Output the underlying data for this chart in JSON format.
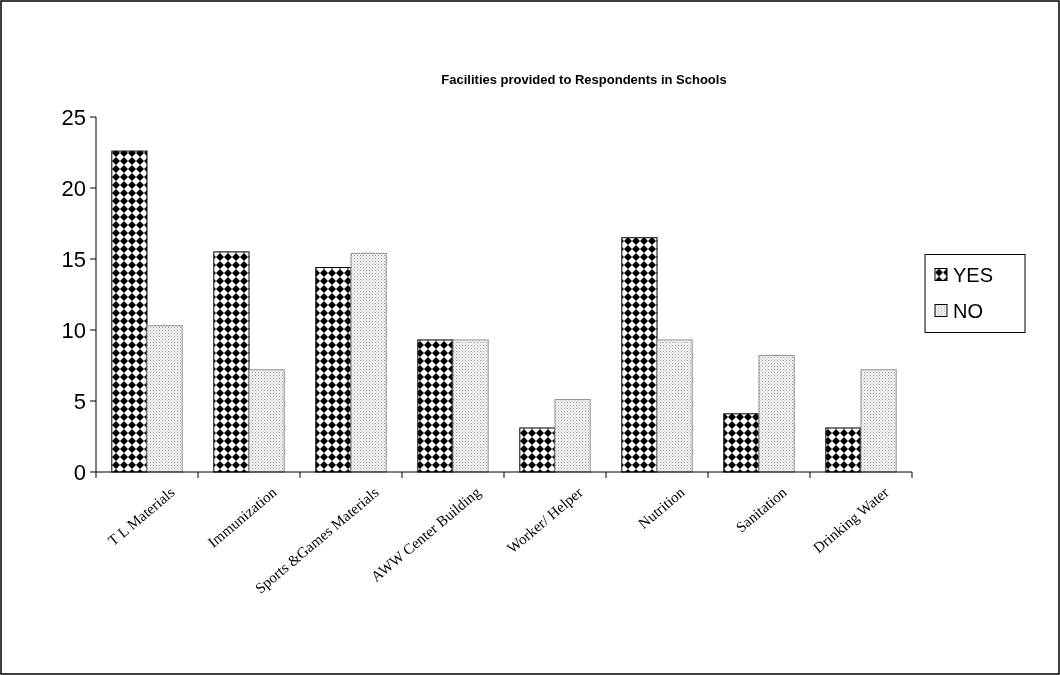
{
  "chart_data": {
    "type": "bar",
    "title": "Facilities provided to Respondents in Schools",
    "categories": [
      "T L Materials",
      "Immunization",
      "Sports &Games Materials",
      "AWW Center Building",
      "Worker/ Helper",
      "Nutrition",
      "Sanitation",
      "Drinking Water"
    ],
    "series": [
      {
        "name": "YES",
        "color": "#000000",
        "values": [
          22.6,
          15.5,
          14.4,
          9.3,
          3.1,
          16.5,
          4.1,
          3.1
        ]
      },
      {
        "name": "NO",
        "color": "#909090",
        "values": [
          10.3,
          7.2,
          15.4,
          9.3,
          5.1,
          9.3,
          8.2,
          7.2
        ]
      }
    ],
    "ylim": [
      0,
      25
    ],
    "yticks": [
      0,
      5,
      10,
      15,
      20,
      25
    ],
    "grid": false,
    "legend": "right"
  }
}
